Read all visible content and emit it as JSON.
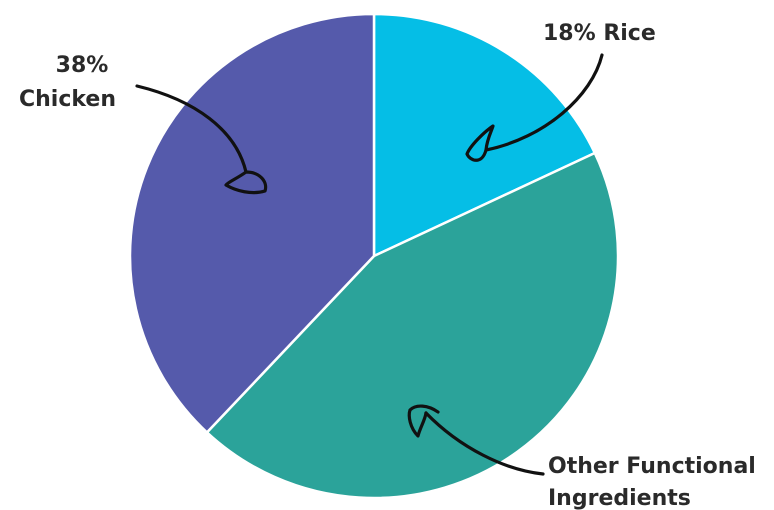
{
  "chart_data": {
    "type": "pie",
    "start_angle_deg": 0,
    "direction": "clockwise",
    "slices": [
      {
        "label": "Rice",
        "value": 18,
        "color": "#05bee6",
        "callout_lines": [
          "18% Rice"
        ]
      },
      {
        "label": "Other Functional Ingredients",
        "value": 44,
        "color": "#2ba39a",
        "callout_lines": [
          "Other Functional",
          "Ingredients"
        ]
      },
      {
        "label": "Chicken",
        "value": 38,
        "color": "#555aab",
        "callout_lines": [
          "38%",
          "Chicken"
        ]
      }
    ],
    "slice_separator_color": "#ffffff",
    "legend": "none",
    "callout_style": "hand-drawn arrows"
  }
}
